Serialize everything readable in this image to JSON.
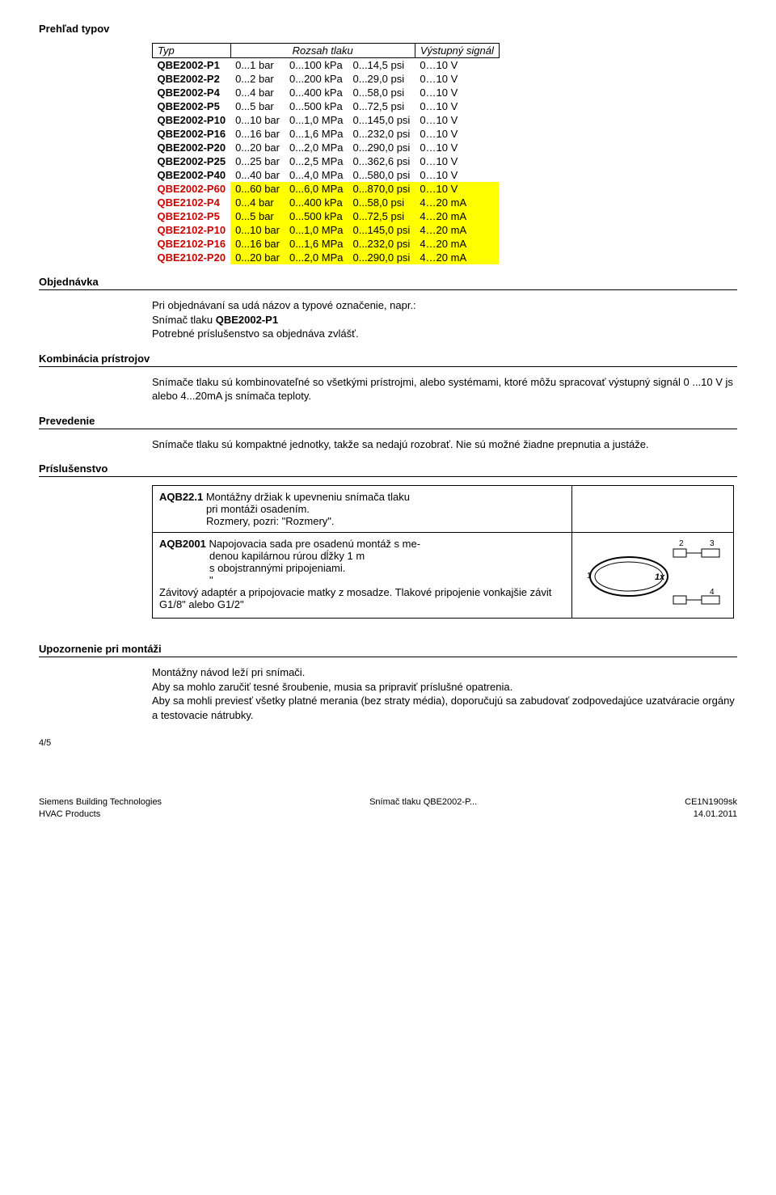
{
  "section_titles": {
    "types": "Prehľad typov",
    "order": "Objednávka",
    "combo": "Kombinácia prístrojov",
    "exec": "Prevedenie",
    "acc": "Príslušenstvo",
    "mount": "Upozornenie pri montáži"
  },
  "table": {
    "headers": {
      "type": "Typ",
      "range": "Rozsah tlaku",
      "signal": "Výstupný signál"
    },
    "plain_rows": [
      {
        "name": "QBE2002-P1",
        "r1": "0...1 bar",
        "r2": "0...100 kPa",
        "r3": "0...14,5 psi",
        "sig": "0…10 V"
      },
      {
        "name": "QBE2002-P2",
        "r1": "0...2 bar",
        "r2": "0...200 kPa",
        "r3": "0...29,0 psi",
        "sig": "0…10 V"
      },
      {
        "name": "QBE2002-P4",
        "r1": "0...4 bar",
        "r2": "0...400 kPa",
        "r3": "0...58,0 psi",
        "sig": "0…10 V"
      },
      {
        "name": "QBE2002-P5",
        "r1": "0...5 bar",
        "r2": "0...500 kPa",
        "r3": "0...72,5 psi",
        "sig": "0…10 V"
      },
      {
        "name": "QBE2002-P10",
        "r1": "0...10 bar",
        "r2": "0...1,0 MPa",
        "r3": "0...145,0 psi",
        "sig": "0…10 V"
      },
      {
        "name": "QBE2002-P16",
        "r1": "0...16 bar",
        "r2": "0...1,6 MPa",
        "r3": "0...232,0 psi",
        "sig": "0…10 V"
      },
      {
        "name": "QBE2002-P20",
        "r1": "0...20 bar",
        "r2": "0...2,0 MPa",
        "r3": "0...290,0 psi",
        "sig": "0…10 V"
      },
      {
        "name": "QBE2002-P25",
        "r1": "0...25 bar",
        "r2": "0...2,5 MPa",
        "r3": "0...362,6 psi",
        "sig": "0…10 V"
      },
      {
        "name": "QBE2002-P40",
        "r1": "0...40 bar",
        "r2": "0...4,0 MPa",
        "r3": "0...580,0 psi",
        "sig": "0…10 V"
      }
    ],
    "hl_rows": [
      {
        "name": "QBE2002-P60",
        "r1": "0...60 bar",
        "r2": "0...6,0 MPa",
        "r3": "0...870,0 psi",
        "sig": "0…10 V"
      },
      {
        "name": "QBE2102-P4",
        "r1": "0...4 bar",
        "r2": "0...400 kPa",
        "r3": "0...58,0 psi",
        "sig": "4…20 mA"
      },
      {
        "name": "QBE2102-P5",
        "r1": "0...5 bar",
        "r2": "0...500 kPa",
        "r3": "0...72,5 psi",
        "sig": "4…20 mA"
      },
      {
        "name": "QBE2102-P10",
        "r1": "0...10 bar",
        "r2": "0...1,0 MPa",
        "r3": "0...145,0 psi",
        "sig": "4…20 mA"
      },
      {
        "name": "QBE2102-P16",
        "r1": "0...16 bar",
        "r2": "0...1,6 MPa",
        "r3": "0...232,0 psi",
        "sig": "4…20 mA"
      },
      {
        "name": "QBE2102-P20",
        "r1": "0...20 bar",
        "r2": "0...2,0 MPa",
        "r3": "0...290,0 psi",
        "sig": "4…20 mA"
      }
    ]
  },
  "order_text": {
    "l1": "Pri objednávaní sa udá názov a typové označenie, napr.:",
    "l2a": "Snímač tlaku ",
    "l2b": "QBE2002-P1",
    "l3": "Potrebné príslušenstvo sa objednáva zvlášť."
  },
  "combo_text": "Snímače tlaku sú kombinovateľné so všetkými prístrojmi, alebo systémami, ktoré môžu spracovať výstupný signál  0 ...10 V js alebo 4...20mA js snímača teploty.",
  "exec_text": "Snímače tlaku sú kompaktné jednotky, takže sa nedajú rozobrať. Nie sú možné žiadne prepnutia a justáže.",
  "acc": {
    "r1": {
      "label": "AQB22.1",
      "l1": "Montážny držiak k upevneniu snímača tlaku",
      "l2": "pri montáži osadením.",
      "l3": "Rozmery, pozri: \"Rozmery\"."
    },
    "r2": {
      "label": "AQB2001",
      "l1": "Napojovacia sada pre osadenú montáž s me-",
      "l2": "denou kapilárnou rúrou dĺžky 1 m",
      "l3": "s obojstrannými pripojeniami.",
      "l4": "\"",
      "p2": "Závitový adaptér a pripojovacie matky z mosadze. Tlakové pripojenie vonkajšie závit G1/8\" alebo G1/2\""
    },
    "diagram_labels": {
      "one": "1",
      "two": "2",
      "three": "3",
      "four": "4",
      "onex": "1x"
    }
  },
  "mount": {
    "l1": "Montážny návod leží pri snímači.",
    "l2": "Aby sa mohlo zaručiť tesné šroubenie, musia sa pripraviť príslušné opatrenia.",
    "l3": "Aby sa mohli previesť všetky platné merania (bez straty média), doporučujú sa zabudovať zodpovedajúce uzatváracie orgány a testovacie nátrubky."
  },
  "footer": {
    "pageno": "4/5",
    "left1": "Siemens Building Technologies",
    "left2": "HVAC Products",
    "center": "Snímač tlaku QBE2002-P...",
    "right1": "CE1N1909sk",
    "right2": "14.01.2011"
  },
  "colors": {
    "highlight": "#ffff00",
    "red_text": "#cc0000"
  }
}
